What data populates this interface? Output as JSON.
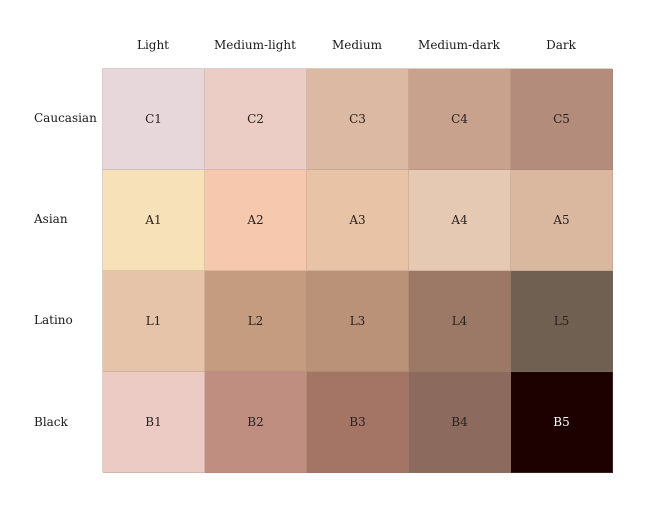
{
  "columns": [
    "Light",
    "Medium-light",
    "Medium",
    "Medium-dark",
    "Dark"
  ],
  "rows": [
    {
      "label": "Caucasian",
      "cells": [
        {
          "code": "C1",
          "color": "#e8d7da"
        },
        {
          "code": "C2",
          "color": "#eccdc5"
        },
        {
          "code": "C3",
          "color": "#dbb9a2"
        },
        {
          "code": "C4",
          "color": "#c8a28c"
        },
        {
          "code": "C5",
          "color": "#b38c7b"
        }
      ]
    },
    {
      "label": "Asian",
      "cells": [
        {
          "code": "A1",
          "color": "#f7e1b9"
        },
        {
          "code": "A2",
          "color": "#f6c8ae"
        },
        {
          "code": "A3",
          "color": "#e9c3a5"
        },
        {
          "code": "A4",
          "color": "#e6c9b3"
        },
        {
          "code": "A5",
          "color": "#dab89f"
        }
      ]
    },
    {
      "label": "Latino",
      "cells": [
        {
          "code": "L1",
          "color": "#e5c4a9"
        },
        {
          "code": "L2",
          "color": "#c59c80"
        },
        {
          "code": "L3",
          "color": "#ba9277"
        },
        {
          "code": "L4",
          "color": "#9c7866"
        },
        {
          "code": "L5",
          "color": "#6f6052"
        }
      ]
    },
    {
      "label": "Black",
      "cells": [
        {
          "code": "B1",
          "color": "#eccbc5"
        },
        {
          "code": "B2",
          "color": "#c08e80"
        },
        {
          "code": "B3",
          "color": "#a47565"
        },
        {
          "code": "B4",
          "color": "#8c6a5e"
        },
        {
          "code": "B5",
          "color": "#1d0000",
          "text_color": "#ffffff"
        }
      ]
    }
  ]
}
